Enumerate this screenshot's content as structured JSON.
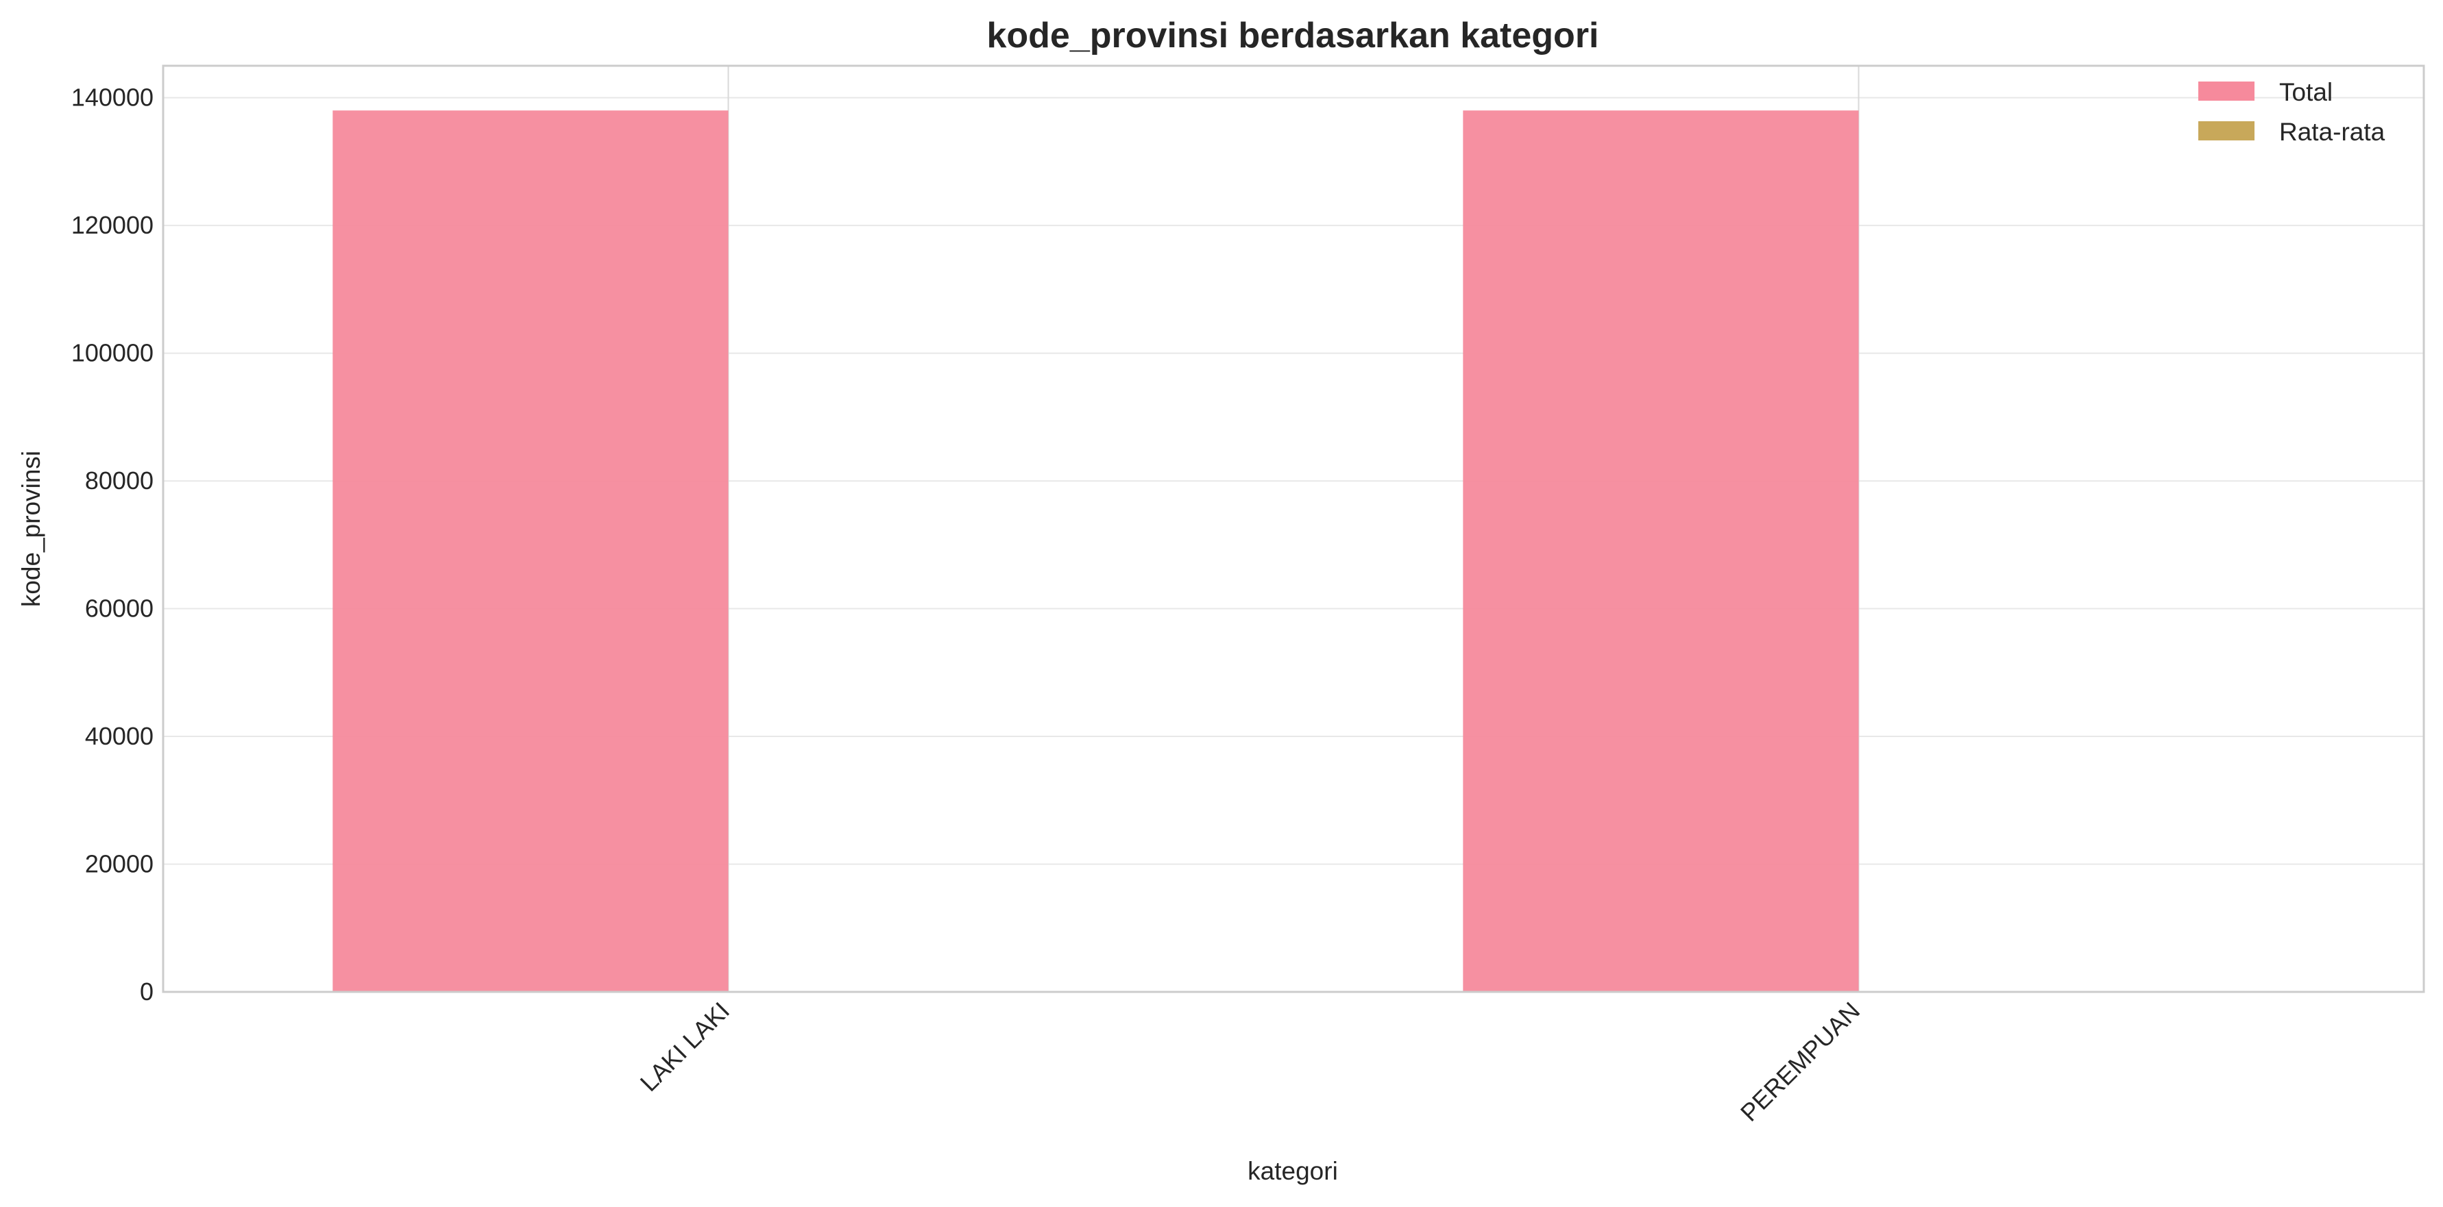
{
  "chart_data": {
    "type": "bar",
    "title": "kode_provinsi berdasarkan kategori",
    "xlabel": "kategori",
    "ylabel": "kode_provinsi",
    "categories": [
      "LAKI LAKI",
      "PEREMPUAN"
    ],
    "series": [
      {
        "name": "Total",
        "values": [
          138000,
          138000
        ],
        "color": "#f68a9c"
      },
      {
        "name": "Rata-rata",
        "values": [
          12.5,
          12.5
        ],
        "color": "#c8a85a"
      }
    ],
    "ylim": [
      0,
      145000
    ],
    "yticks": [
      0,
      20000,
      40000,
      60000,
      80000,
      100000,
      120000,
      140000
    ],
    "grid": true,
    "legend_position": "top-right"
  }
}
